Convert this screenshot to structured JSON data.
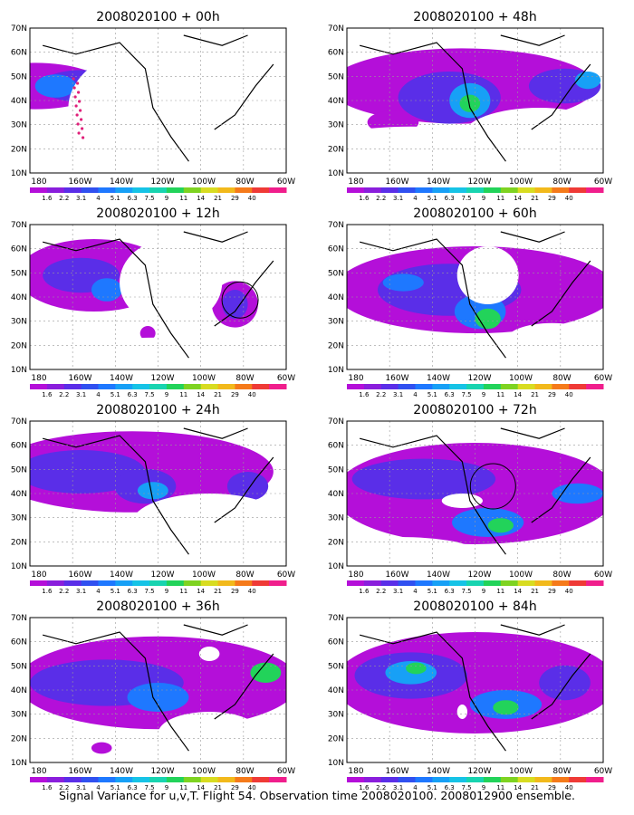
{
  "caption": "Signal Variance for u,v,T. Flight 54. Observation time 2008020100. 2008012900 ensemble.",
  "colorbar": {
    "labels": [
      "1.6",
      "2.2",
      "3.1",
      "4",
      "5.1",
      "6.3",
      "7.5",
      "9",
      "11",
      "14",
      "21",
      "29",
      "40"
    ],
    "colors": [
      "#b40fd9",
      "#8a1edc",
      "#5a2ee8",
      "#3050f0",
      "#1e78ff",
      "#17a0f6",
      "#16c3e6",
      "#18d4b0",
      "#22d35a",
      "#7ed321",
      "#d8dc21",
      "#f2b91b",
      "#f57a1a",
      "#ef3a36",
      "#f01e8c"
    ]
  },
  "axes": {
    "x_ticks": [
      "180",
      "160W",
      "140W",
      "120W",
      "100W",
      "80W",
      "60W"
    ],
    "y_ticks": [
      "10N",
      "20N",
      "30N",
      "40N",
      "50N",
      "60N",
      "70N"
    ]
  },
  "panels": [
    {
      "id": "p00",
      "title": "2008020100 + 00h"
    },
    {
      "id": "p48",
      "title": "2008020100 + 48h"
    },
    {
      "id": "p12",
      "title": "2008020100 + 12h"
    },
    {
      "id": "p60",
      "title": "2008020100 + 60h"
    },
    {
      "id": "p24",
      "title": "2008020100 + 24h"
    },
    {
      "id": "p72",
      "title": "2008020100 + 72h"
    },
    {
      "id": "p36",
      "title": "2008020100 + 36h"
    },
    {
      "id": "p84",
      "title": "2008020100 + 84h"
    }
  ]
}
